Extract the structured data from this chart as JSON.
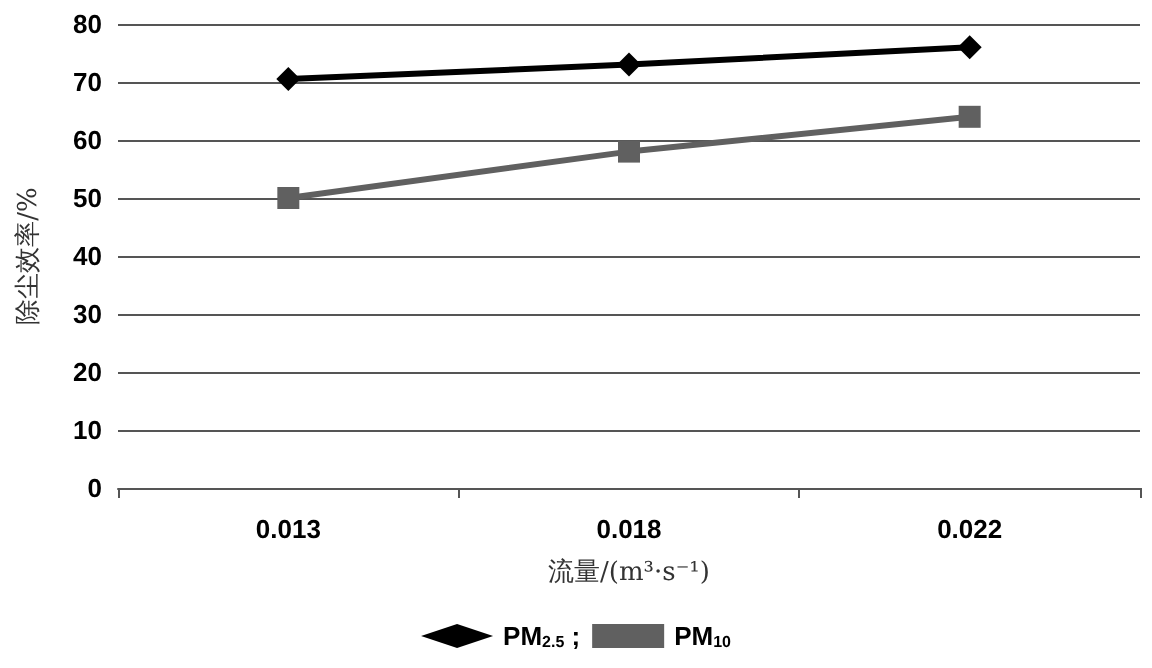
{
  "chart_data": {
    "type": "line",
    "xlabel": "流量/(m³·s⁻¹)",
    "ylabel": "除尘效率/%",
    "categories": [
      "0.013",
      "0.018",
      "0.022"
    ],
    "series": [
      {
        "name": "PM$_{2.5}$ ;",
        "color": "#000000",
        "marker": "diamond",
        "values": [
          70.5,
          73,
          76
        ]
      },
      {
        "name": "PM$_{10}$",
        "color": "#606060",
        "marker": "square",
        "values": [
          50,
          58,
          64
        ]
      }
    ],
    "ylim": [
      0,
      80
    ],
    "yticks": [
      0,
      10,
      20,
      30,
      40,
      50,
      60,
      70,
      80
    ],
    "grid": "y",
    "legend": "bottom"
  }
}
